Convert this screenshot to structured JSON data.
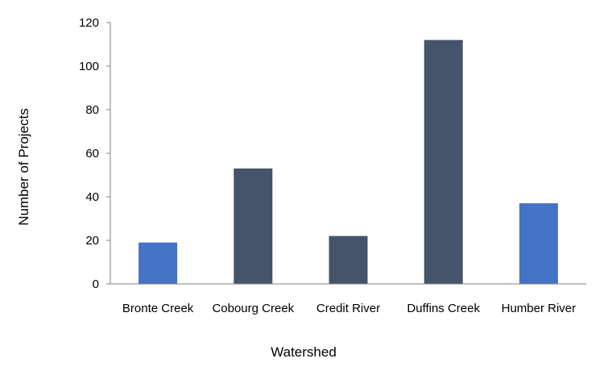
{
  "chart_data": {
    "type": "bar",
    "title": "",
    "xlabel": "Watershed",
    "ylabel": "Number of Projects",
    "categories": [
      "Bronte Creek",
      "Cobourg Creek",
      "Credit River",
      "Duffins Creek",
      "Humber River"
    ],
    "values": [
      19,
      53,
      22,
      112,
      37
    ],
    "bar_colors": [
      "#4472c4",
      "#44546a",
      "#44546a",
      "#44546a",
      "#4472c4"
    ],
    "ylim": [
      0,
      120
    ],
    "yticks": [
      "0",
      "20",
      "40",
      "60",
      "80",
      "100",
      "120"
    ],
    "grid": false,
    "legend": "none"
  }
}
